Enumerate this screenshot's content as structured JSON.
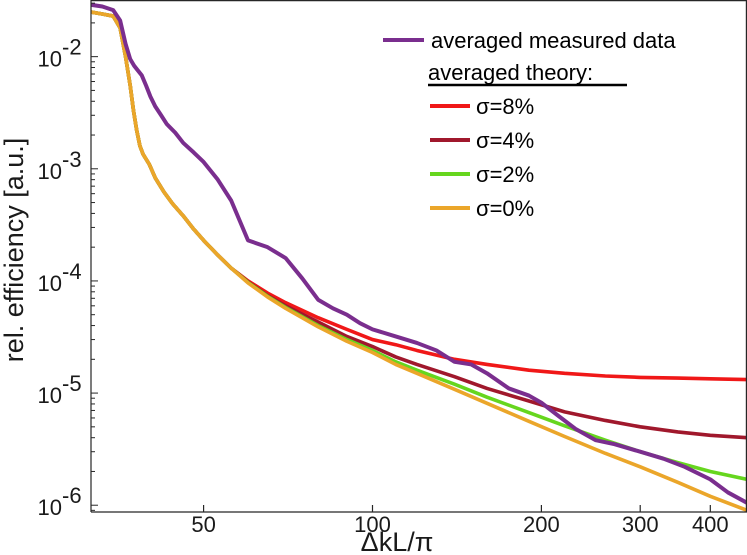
{
  "chart_data": {
    "type": "line",
    "title": "",
    "xlabel": "ΔkL/π",
    "ylabel": "rel. efficiency [a.u.]",
    "xscale": "log",
    "yscale": "log",
    "xlim": [
      31.5,
      465
    ],
    "ylim": [
      8.7e-07,
      0.032
    ],
    "x_ticks": [
      {
        "value": 50,
        "label": "50"
      },
      {
        "value": 100,
        "label": "100"
      },
      {
        "value": 200,
        "label": "200"
      },
      {
        "value": 300,
        "label": "300"
      },
      {
        "value": 400,
        "label": "400"
      }
    ],
    "y_ticks": [
      {
        "value": 0.01,
        "base": "10",
        "exp": "-2"
      },
      {
        "value": 0.001,
        "base": "10",
        "exp": "-3"
      },
      {
        "value": 0.0001,
        "base": "10",
        "exp": "-4"
      },
      {
        "value": 1e-05,
        "base": "10",
        "exp": "-5"
      },
      {
        "value": 1e-06,
        "base": "10",
        "exp": "-6"
      }
    ],
    "legend": {
      "placement": "top-right",
      "heading": "averaged theory:"
    },
    "series": [
      {
        "name": "averaged measured data",
        "role": "measured",
        "color": "#7a2e8e",
        "x": [
          31.5,
          33,
          34.5,
          35.5,
          36.3,
          37,
          37.6,
          38.2,
          38.8,
          39.5,
          40.2,
          41,
          42,
          43,
          44.5,
          46,
          48,
          50,
          53,
          56,
          60,
          65,
          70,
          75,
          80,
          85,
          90,
          95,
          100,
          110,
          120,
          130,
          140,
          150,
          160,
          175,
          190,
          200,
          215,
          230,
          250,
          270,
          300,
          330,
          360,
          400,
          430,
          465
        ],
        "y": [
          0.029,
          0.028,
          0.026,
          0.021,
          0.013,
          0.0095,
          0.0083,
          0.0075,
          0.0068,
          0.0055,
          0.0044,
          0.0036,
          0.003,
          0.0025,
          0.0021,
          0.0017,
          0.0014,
          0.00115,
          0.0008,
          0.00052,
          0.00023,
          0.0002,
          0.00016,
          0.000105,
          6.8e-05,
          5.7e-05,
          5e-05,
          4.2e-05,
          3.7e-05,
          3.2e-05,
          2.8e-05,
          2.4e-05,
          1.9e-05,
          1.8e-05,
          1.5e-05,
          1.1e-05,
          9.5e-06,
          8.2e-06,
          6.2e-06,
          4.8e-06,
          3.8e-06,
          3.5e-06,
          3e-06,
          2.6e-06,
          2.2e-06,
          1.7e-06,
          1.3e-06,
          1.05e-06
        ]
      },
      {
        "name": "σ=8%",
        "role": "theory",
        "color": "#f01818",
        "x": [
          31.5,
          33,
          34.5,
          35.5,
          36.3,
          37,
          37.5,
          38,
          38.5,
          39,
          40,
          41,
          42.5,
          44,
          46,
          48,
          50,
          53,
          56,
          60,
          65,
          70,
          80,
          90,
          100,
          110,
          120,
          140,
          160,
          190,
          220,
          260,
          300,
          350,
          400,
          465
        ],
        "y": [
          0.025,
          0.024,
          0.023,
          0.018,
          0.01,
          0.0055,
          0.0033,
          0.0022,
          0.0016,
          0.00135,
          0.0011,
          0.00083,
          0.00062,
          0.00049,
          0.00038,
          0.00029,
          0.00023,
          0.00017,
          0.00013,
          0.0001,
          7.8e-05,
          6.4e-05,
          4.7e-05,
          3.7e-05,
          3e-05,
          2.7e-05,
          2.4e-05,
          2e-05,
          1.8e-05,
          1.6e-05,
          1.5e-05,
          1.42e-05,
          1.38e-05,
          1.36e-05,
          1.34e-05,
          1.32e-05
        ]
      },
      {
        "name": "σ=4%",
        "role": "theory",
        "color": "#a0182c",
        "x": [
          31.5,
          33,
          34.5,
          35.5,
          36.3,
          37,
          37.5,
          38,
          38.5,
          39,
          40,
          41,
          42.5,
          44,
          46,
          48,
          50,
          53,
          56,
          60,
          65,
          70,
          80,
          90,
          100,
          110,
          120,
          140,
          160,
          190,
          220,
          260,
          300,
          350,
          400,
          465
        ],
        "y": [
          0.025,
          0.024,
          0.023,
          0.018,
          0.01,
          0.0055,
          0.0033,
          0.0022,
          0.0016,
          0.00135,
          0.0011,
          0.00083,
          0.00062,
          0.00049,
          0.00038,
          0.00029,
          0.00023,
          0.00017,
          0.00013,
          9.8e-05,
          7.4e-05,
          6e-05,
          4.3e-05,
          3.2e-05,
          2.6e-05,
          2.1e-05,
          1.8e-05,
          1.4e-05,
          1.1e-05,
          8.5e-06,
          6.8e-06,
          5.7e-06,
          5e-06,
          4.5e-06,
          4.2e-06,
          4e-06
        ]
      },
      {
        "name": "σ=2%",
        "role": "theory",
        "color": "#66d61e",
        "x": [
          31.5,
          33,
          34.5,
          35.5,
          36.3,
          37,
          37.5,
          38,
          38.5,
          39,
          40,
          41,
          42.5,
          44,
          46,
          48,
          50,
          53,
          56,
          60,
          65,
          70,
          80,
          90,
          100,
          110,
          120,
          140,
          160,
          190,
          220,
          260,
          300,
          350,
          400,
          465
        ],
        "y": [
          0.025,
          0.024,
          0.023,
          0.018,
          0.01,
          0.0055,
          0.0033,
          0.0022,
          0.0016,
          0.00135,
          0.0011,
          0.00083,
          0.00062,
          0.00049,
          0.00038,
          0.00029,
          0.00023,
          0.00017,
          0.00013,
          9.7e-05,
          7.3e-05,
          5.8e-05,
          4e-05,
          3e-05,
          2.4e-05,
          1.9e-05,
          1.6e-05,
          1.2e-05,
          9.2e-06,
          6.7e-06,
          5.1e-06,
          3.8e-06,
          3e-06,
          2.4e-06,
          2e-06,
          1.7e-06
        ]
      },
      {
        "name": "σ=0%",
        "role": "theory",
        "color": "#eba62a",
        "x": [
          31.5,
          33,
          34.5,
          35.5,
          36.3,
          37,
          37.5,
          38,
          38.5,
          39,
          40,
          41,
          42.5,
          44,
          46,
          48,
          50,
          53,
          56,
          60,
          65,
          70,
          80,
          90,
          100,
          110,
          120,
          140,
          160,
          190,
          220,
          260,
          300,
          350,
          400,
          465
        ],
        "y": [
          0.025,
          0.024,
          0.023,
          0.018,
          0.01,
          0.0055,
          0.0033,
          0.0022,
          0.0016,
          0.00135,
          0.0011,
          0.00083,
          0.00062,
          0.00049,
          0.00038,
          0.00029,
          0.00023,
          0.00017,
          0.00013,
          9.6e-05,
          7.2e-05,
          5.7e-05,
          3.9e-05,
          2.9e-05,
          2.3e-05,
          1.8e-05,
          1.5e-05,
          1.08e-05,
          8.1e-06,
          5.6e-06,
          4.1e-06,
          2.9e-06,
          2.2e-06,
          1.6e-06,
          1.2e-06,
          9e-07
        ]
      }
    ]
  }
}
